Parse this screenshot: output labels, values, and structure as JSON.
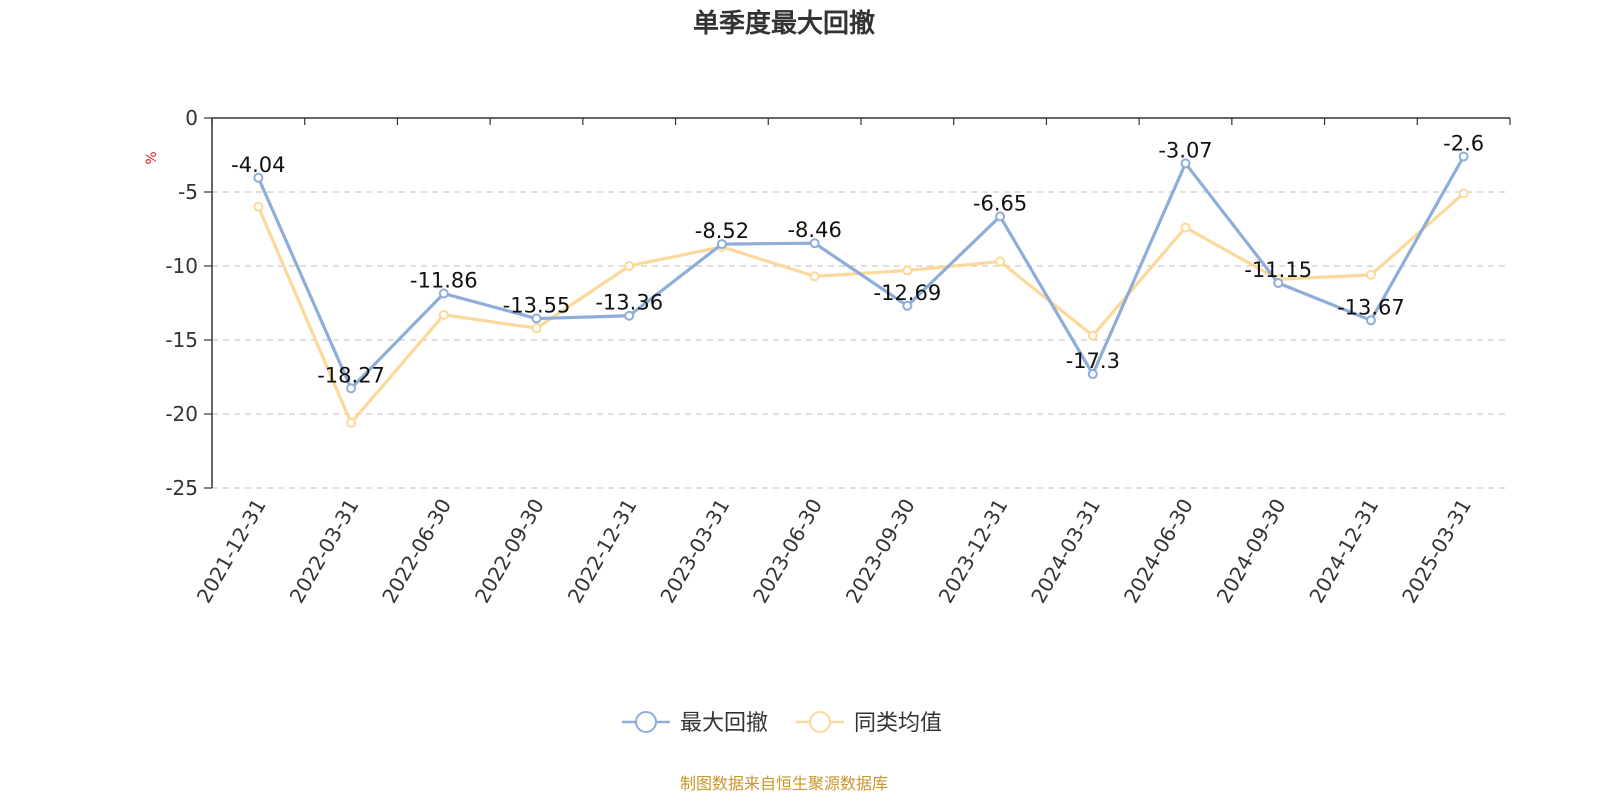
{
  "chart_data": {
    "type": "line",
    "title": "单季度最大回撤",
    "ylabel": "%",
    "xlabel": "",
    "ylim": [
      -25,
      0
    ],
    "yticks": [
      0,
      -5,
      -10,
      -15,
      -20,
      -25
    ],
    "grid": "horizontal dashed",
    "legend_position": "bottom",
    "categories": [
      "2021-12-31",
      "2022-03-31",
      "2022-06-30",
      "2022-09-30",
      "2022-12-31",
      "2023-03-31",
      "2023-06-30",
      "2023-09-30",
      "2023-12-31",
      "2024-03-31",
      "2024-06-30",
      "2024-09-30",
      "2024-12-31",
      "2025-03-31"
    ],
    "series": [
      {
        "name": "最大回撤",
        "color": "#8fadd9",
        "show_labels": true,
        "values": [
          -4.04,
          -18.27,
          -11.86,
          -13.55,
          -13.36,
          -8.52,
          -8.46,
          -12.69,
          -6.65,
          -17.3,
          -3.07,
          -11.15,
          -13.67,
          -2.6
        ],
        "labels": [
          "-4.04",
          "-18.27",
          "-11.86",
          "-13.55",
          "-13.36",
          "-8.52",
          "-8.46",
          "-12.69",
          "-6.65",
          "-17.3",
          "-3.07",
          "-11.15",
          "-13.67",
          "-2.6"
        ]
      },
      {
        "name": "同类均值",
        "color": "#fcd99a",
        "show_labels": false,
        "values": [
          -6.0,
          -20.6,
          -13.3,
          -14.2,
          -10.0,
          -8.7,
          -10.7,
          -10.3,
          -9.7,
          -14.7,
          -7.4,
          -10.9,
          -10.6,
          -5.1
        ]
      }
    ]
  },
  "source_note": "制图数据来自恒生聚源数据库"
}
